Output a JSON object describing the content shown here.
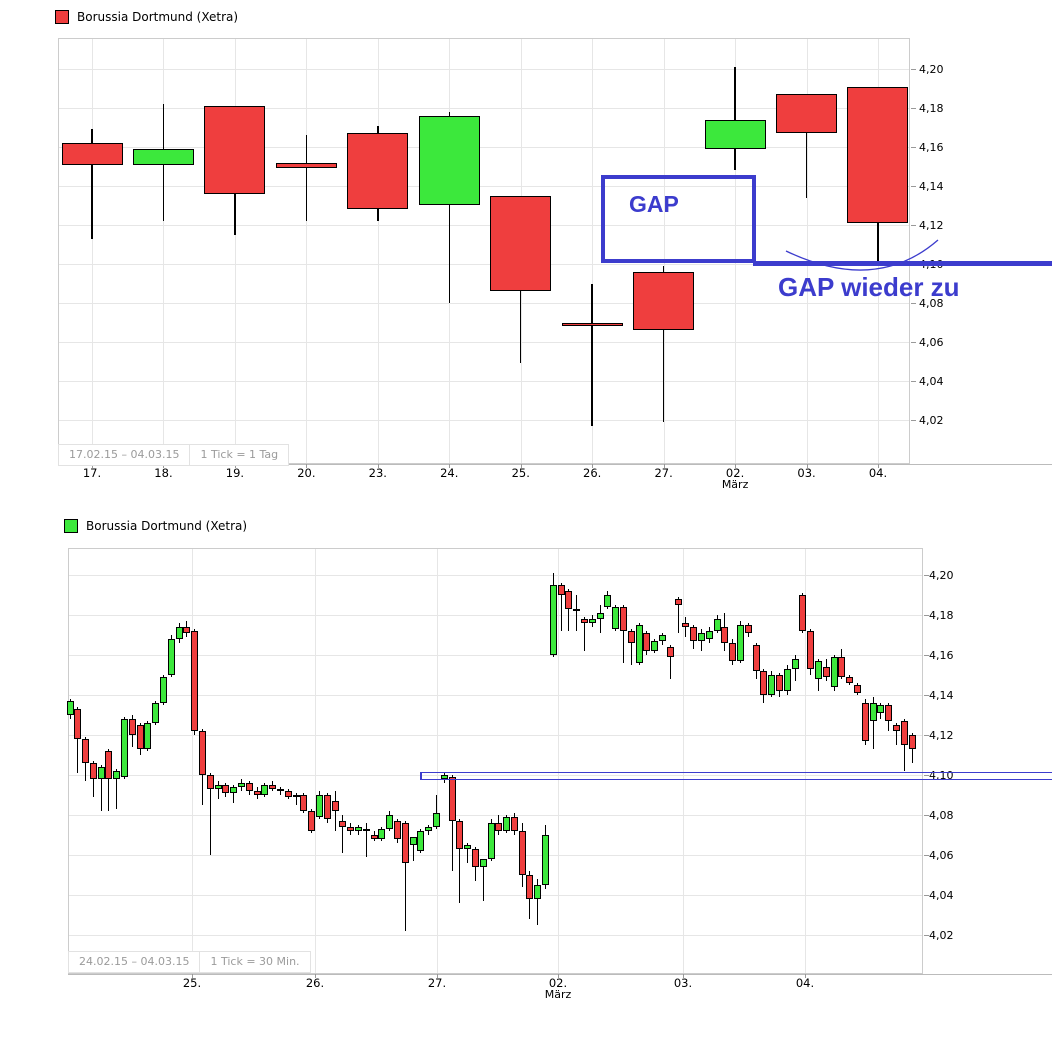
{
  "page": {
    "background": "#ffffff"
  },
  "colors": {
    "up": "#3ce83c",
    "down": "#ef3e3e",
    "wick": "#000000",
    "annotation_blue": "#3c3ccd",
    "grid": "#e6e6e6",
    "plot_border": "#cccccc",
    "footer_text": "#9b9b9b",
    "label_text": "#000000"
  },
  "annotations": {
    "gap_box_label": "GAP",
    "gap_closed_label": "GAP wieder zu",
    "gap_box_price_top": 4.146,
    "gap_box_price_bottom": 4.1005,
    "gap_level_price": 4.1,
    "channel_prices": [
      4.1005,
      4.0975
    ]
  },
  "chart_data": [
    {
      "type": "candlestick",
      "title": "Borussia Dortmund (Xetra)",
      "marker_color": "#ef3e3e",
      "date_range": "17.02.15 – 04.03.15",
      "interval": "1 Tick = 1 Tag",
      "month_label": "März",
      "legend_position": "top-left",
      "grid": true,
      "ylim": [
        3.997,
        4.216
      ],
      "y_tick_labels": [
        "4,20",
        "4,18",
        "4,16",
        "4,14",
        "4,12",
        "4,10",
        "4,08",
        "4,06",
        "4,04",
        "4,02"
      ],
      "y_tick_values": [
        4.2,
        4.18,
        4.16,
        4.14,
        4.12,
        4.1,
        4.08,
        4.06,
        4.04,
        4.02
      ],
      "x_tick_labels": [
        "17.",
        "18.",
        "19.",
        "20.",
        "23.",
        "24.",
        "25.",
        "26.",
        "27.",
        "02.",
        "03.",
        "04."
      ],
      "month_under_label": "02.",
      "candles_ohlc": [
        [
          4.162,
          4.169,
          4.113,
          4.151
        ],
        [
          4.151,
          4.182,
          4.122,
          4.159
        ],
        [
          4.181,
          4.181,
          4.115,
          4.136
        ],
        [
          4.152,
          4.166,
          4.122,
          4.149
        ],
        [
          4.167,
          4.171,
          4.122,
          4.128
        ],
        [
          4.13,
          4.178,
          4.08,
          4.176
        ],
        [
          4.135,
          4.135,
          4.049,
          4.086
        ],
        [
          4.07,
          4.09,
          4.017,
          4.068
        ],
        [
          4.096,
          4.099,
          4.019,
          4.066
        ],
        [
          4.159,
          4.201,
          4.148,
          4.174
        ],
        [
          4.187,
          4.187,
          4.134,
          4.167
        ],
        [
          4.191,
          4.191,
          4.1,
          4.121
        ]
      ]
    },
    {
      "type": "candlestick",
      "title": "Borussia Dortmund (Xetra)",
      "marker_color": "#3ce83c",
      "date_range": "24.02.15 – 04.03.15",
      "interval": "1 Tick = 30 Min.",
      "month_label": "März",
      "legend_position": "top-left",
      "grid": true,
      "ylim": [
        4.0005,
        4.2135
      ],
      "y_tick_labels": [
        "4,20",
        "4,18",
        "4,16",
        "4,14",
        "4,12",
        "4,10",
        "4,08",
        "4,06",
        "4,04",
        "4,02"
      ],
      "y_tick_values": [
        4.2,
        4.18,
        4.16,
        4.14,
        4.12,
        4.1,
        4.08,
        4.06,
        4.04,
        4.02
      ],
      "x_tick_labels": [
        "25.",
        "26.",
        "27.",
        "02.",
        "03.",
        "04."
      ],
      "month_under_label": "02.",
      "candles_ohlc": [
        [
          4.13,
          4.138,
          4.128,
          4.137
        ],
        [
          4.133,
          4.134,
          4.101,
          4.118
        ],
        [
          4.118,
          4.119,
          4.097,
          4.106
        ],
        [
          4.106,
          4.107,
          4.089,
          4.098
        ],
        [
          4.098,
          4.105,
          4.082,
          4.104
        ],
        [
          4.112,
          4.113,
          4.082,
          4.098
        ],
        [
          4.098,
          4.103,
          4.083,
          4.102
        ],
        [
          4.099,
          4.129,
          4.098,
          4.128
        ],
        [
          4.128,
          4.13,
          4.114,
          4.12
        ],
        [
          4.125,
          4.126,
          4.11,
          4.113
        ],
        [
          4.113,
          4.127,
          4.112,
          4.126
        ],
        [
          4.126,
          4.137,
          4.125,
          4.136
        ],
        [
          4.136,
          4.15,
          4.135,
          4.149
        ],
        [
          4.15,
          4.17,
          4.149,
          4.168
        ],
        [
          4.168,
          4.176,
          4.166,
          4.174
        ],
        [
          4.174,
          4.177,
          4.169,
          4.171
        ],
        [
          4.172,
          4.173,
          4.12,
          4.122
        ],
        [
          4.122,
          4.123,
          4.085,
          4.1
        ],
        [
          4.1,
          4.101,
          4.06,
          4.093
        ],
        [
          4.093,
          4.097,
          4.088,
          4.095
        ],
        [
          4.095,
          4.096,
          4.089,
          4.091
        ],
        [
          4.091,
          4.095,
          4.086,
          4.094
        ],
        [
          4.094,
          4.098,
          4.092,
          4.096
        ],
        [
          4.096,
          4.097,
          4.09,
          4.092
        ],
        [
          4.092,
          4.094,
          4.088,
          4.09
        ],
        [
          4.09,
          4.096,
          4.089,
          4.095
        ],
        [
          4.095,
          4.097,
          4.092,
          4.093
        ],
        [
          4.093,
          4.094,
          4.09,
          4.092
        ],
        [
          4.092,
          4.093,
          4.088,
          4.089
        ],
        [
          4.089,
          4.091,
          4.085,
          4.09
        ],
        [
          4.09,
          4.091,
          4.081,
          4.082
        ],
        [
          4.082,
          4.083,
          4.071,
          4.072
        ],
        [
          4.079,
          4.092,
          4.078,
          4.09
        ],
        [
          4.09,
          4.091,
          4.076,
          4.078
        ],
        [
          4.087,
          4.092,
          4.072,
          4.082
        ],
        [
          4.077,
          4.08,
          4.061,
          4.074
        ],
        [
          4.074,
          4.076,
          4.07,
          4.072
        ],
        [
          4.072,
          4.075,
          4.07,
          4.074
        ],
        [
          4.073,
          4.076,
          4.059,
          4.073
        ],
        [
          4.07,
          4.072,
          4.067,
          4.068
        ],
        [
          4.068,
          4.074,
          4.067,
          4.073
        ],
        [
          4.073,
          4.082,
          4.072,
          4.08
        ],
        [
          4.077,
          4.078,
          4.066,
          4.068
        ],
        [
          4.076,
          4.077,
          4.022,
          4.056
        ],
        [
          4.065,
          4.066,
          4.057,
          4.069
        ],
        [
          4.062,
          4.073,
          4.061,
          4.072
        ],
        [
          4.072,
          4.075,
          4.07,
          4.074
        ],
        [
          4.074,
          4.09,
          4.073,
          4.081
        ],
        [
          4.098,
          4.101,
          4.096,
          4.1
        ],
        [
          4.099,
          4.1,
          4.052,
          4.077
        ],
        [
          4.077,
          4.078,
          4.036,
          4.063
        ],
        [
          4.063,
          4.066,
          4.056,
          4.065
        ],
        [
          4.063,
          4.064,
          4.047,
          4.054
        ],
        [
          4.054,
          4.058,
          4.037,
          4.058
        ],
        [
          4.058,
          4.078,
          4.057,
          4.076
        ],
        [
          4.076,
          4.08,
          4.07,
          4.072
        ],
        [
          4.072,
          4.08,
          4.071,
          4.079
        ],
        [
          4.079,
          4.081,
          4.07,
          4.072
        ],
        [
          4.072,
          4.076,
          4.044,
          4.05
        ],
        [
          4.05,
          4.052,
          4.028,
          4.038
        ],
        [
          4.038,
          4.048,
          4.025,
          4.045
        ],
        [
          4.045,
          4.075,
          4.043,
          4.07
        ],
        [
          4.16,
          4.201,
          4.159,
          4.195
        ],
        [
          4.195,
          4.196,
          4.172,
          4.19
        ],
        [
          4.192,
          4.193,
          4.172,
          4.183
        ],
        [
          4.183,
          4.19,
          4.172,
          4.182
        ],
        [
          4.178,
          4.179,
          4.162,
          4.176
        ],
        [
          4.176,
          4.18,
          4.174,
          4.178
        ],
        [
          4.178,
          4.185,
          4.171,
          4.181
        ],
        [
          4.184,
          4.192,
          4.183,
          4.19
        ],
        [
          4.173,
          4.185,
          4.172,
          4.184
        ],
        [
          4.184,
          4.185,
          4.156,
          4.172
        ],
        [
          4.172,
          4.173,
          4.155,
          4.166
        ],
        [
          4.156,
          4.176,
          4.155,
          4.175
        ],
        [
          4.171,
          4.172,
          4.16,
          4.162
        ],
        [
          4.162,
          4.168,
          4.161,
          4.167
        ],
        [
          4.167,
          4.171,
          4.165,
          4.17
        ],
        [
          4.164,
          4.165,
          4.148,
          4.159
        ],
        [
          4.188,
          4.189,
          4.171,
          4.185
        ],
        [
          4.176,
          4.179,
          4.169,
          4.174
        ],
        [
          4.174,
          4.175,
          4.163,
          4.167
        ],
        [
          4.167,
          4.173,
          4.162,
          4.171
        ],
        [
          4.168,
          4.174,
          4.166,
          4.172
        ],
        [
          4.172,
          4.18,
          4.171,
          4.178
        ],
        [
          4.174,
          4.181,
          4.162,
          4.166
        ],
        [
          4.166,
          4.168,
          4.155,
          4.157
        ],
        [
          4.157,
          4.177,
          4.156,
          4.175
        ],
        [
          4.175,
          4.176,
          4.169,
          4.171
        ],
        [
          4.165,
          4.166,
          4.148,
          4.152
        ],
        [
          4.152,
          4.153,
          4.136,
          4.14
        ],
        [
          4.14,
          4.152,
          4.139,
          4.15
        ],
        [
          4.15,
          4.151,
          4.139,
          4.142
        ],
        [
          4.142,
          4.155,
          4.14,
          4.153
        ],
        [
          4.153,
          4.16,
          4.147,
          4.158
        ],
        [
          4.19,
          4.191,
          4.171,
          4.172
        ],
        [
          4.172,
          4.173,
          4.15,
          4.153
        ],
        [
          4.148,
          4.158,
          4.142,
          4.157
        ],
        [
          4.154,
          4.158,
          4.147,
          4.149
        ],
        [
          4.144,
          4.16,
          4.142,
          4.159
        ],
        [
          4.159,
          4.163,
          4.148,
          4.149
        ],
        [
          4.149,
          4.15,
          4.145,
          4.146
        ],
        [
          4.145,
          4.146,
          4.14,
          4.141
        ],
        [
          4.136,
          4.138,
          4.115,
          4.117
        ],
        [
          4.127,
          4.139,
          4.113,
          4.136
        ],
        [
          4.131,
          4.136,
          4.128,
          4.135
        ],
        [
          4.135,
          4.136,
          4.122,
          4.127
        ],
        [
          4.125,
          4.126,
          4.115,
          4.122
        ],
        [
          4.127,
          4.128,
          4.102,
          4.115
        ],
        [
          4.12,
          4.121,
          4.106,
          4.113
        ]
      ]
    }
  ]
}
